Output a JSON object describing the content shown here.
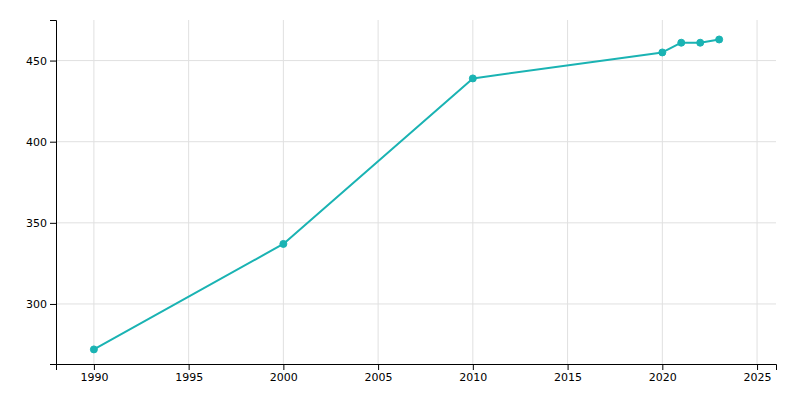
{
  "chart_data": {
    "type": "line",
    "x": [
      1990,
      2000,
      2010,
      2020,
      2021,
      2022,
      2023
    ],
    "values": [
      272,
      337,
      439,
      455,
      461,
      461,
      463
    ],
    "color": "#1ab3b3",
    "marker": "circle",
    "xlim": [
      1988,
      2026
    ],
    "ylim": [
      263,
      475
    ],
    "xticks": [
      1990,
      1995,
      2000,
      2005,
      2010,
      2015,
      2020,
      2025
    ],
    "yticks": [
      300,
      350,
      400,
      450
    ],
    "grid": true
  }
}
